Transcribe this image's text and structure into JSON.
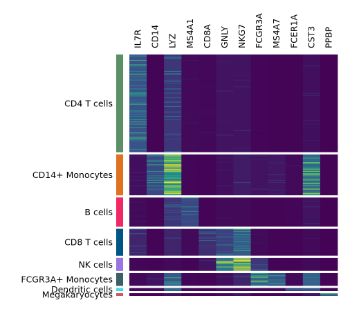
{
  "chart_data": {
    "type": "heatmap",
    "title": "",
    "genes": [
      "IL7R",
      "CD14",
      "LYZ",
      "MS4A1",
      "CD8A",
      "GNLY",
      "NKG7",
      "FCGR3A",
      "MS4A7",
      "FCER1A",
      "CST3",
      "PPBP"
    ],
    "groups": [
      {
        "name": "CD4 T cells",
        "color": "#5b8f65",
        "cells": 1144,
        "mean_expression": [
          0.45,
          0.02,
          0.3,
          0.05,
          0.04,
          0.1,
          0.1,
          0.03,
          0.02,
          0.02,
          0.08,
          0.01
        ]
      },
      {
        "name": "CD14+ Monocytes",
        "color": "#e07122",
        "cells": 480,
        "mean_expression": [
          0.08,
          0.4,
          0.85,
          0.03,
          0.02,
          0.08,
          0.15,
          0.1,
          0.12,
          0.05,
          0.6,
          0.02
        ]
      },
      {
        "name": "B cells",
        "color": "#f12766",
        "cells": 342,
        "mean_expression": [
          0.05,
          0.02,
          0.3,
          0.4,
          0.02,
          0.05,
          0.05,
          0.02,
          0.02,
          0.03,
          0.1,
          0.01
        ]
      },
      {
        "name": "CD8 T cells",
        "color": "#005486",
        "cells": 316,
        "mean_expression": [
          0.2,
          0.02,
          0.2,
          0.05,
          0.25,
          0.35,
          0.5,
          0.05,
          0.02,
          0.02,
          0.05,
          0.01
        ]
      },
      {
        "name": "NK cells",
        "color": "#9b74e0",
        "cells": 154,
        "mean_expression": [
          0.03,
          0.02,
          0.05,
          0.02,
          0.1,
          0.7,
          0.75,
          0.3,
          0.02,
          0.02,
          0.05,
          0.01
        ]
      },
      {
        "name": "FCGR3A+ Monocytes",
        "color": "#3c5e65",
        "cells": 150,
        "mean_expression": [
          0.05,
          0.1,
          0.5,
          0.03,
          0.02,
          0.08,
          0.2,
          0.55,
          0.45,
          0.05,
          0.55,
          0.02
        ]
      },
      {
        "name": "Dendritic cells",
        "color": "#47d9e3",
        "cells": 37,
        "mean_expression": [
          0.05,
          0.05,
          0.6,
          0.05,
          0.02,
          0.05,
          0.05,
          0.05,
          0.05,
          0.4,
          0.45,
          0.02
        ]
      },
      {
        "name": "Megakaryocytes",
        "color": "#c95a5a",
        "cells": 15,
        "mean_expression": [
          0.02,
          0.02,
          0.1,
          0.02,
          0.02,
          0.05,
          0.1,
          0.02,
          0.02,
          0.02,
          0.1,
          0.5
        ]
      }
    ],
    "colormap": "viridis",
    "vmin": 0,
    "vmax": 1,
    "legend": "none",
    "grid": false
  }
}
